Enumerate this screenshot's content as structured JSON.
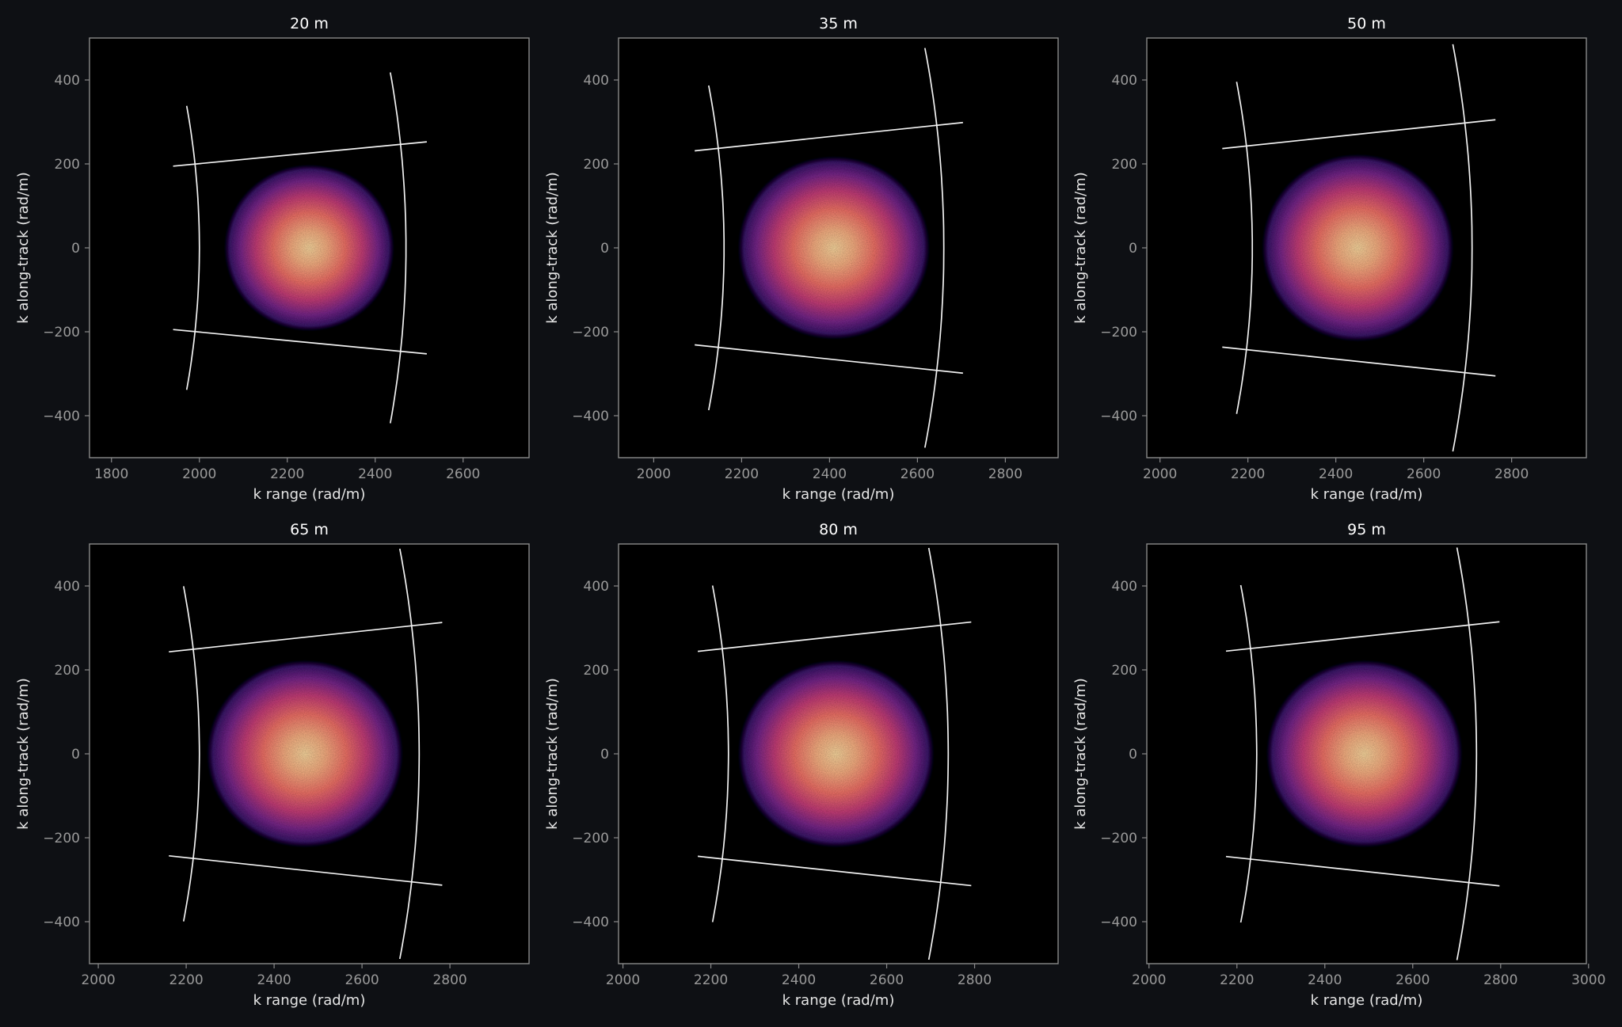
{
  "colors": {
    "background": "#0e1014",
    "plot_bg": "#000000",
    "frame": "#8a8a8a",
    "boundary_line": "#f2f2f2",
    "colormap": "magma"
  },
  "chart_data": [
    {
      "type": "heatmap",
      "title": "20 m",
      "xlabel": "k range (rad/m)",
      "ylabel": "k along-track (rad/m)",
      "xlim": [
        1750,
        2750
      ],
      "ylim": [
        -500,
        500
      ],
      "xticks": [
        1800,
        2000,
        2200,
        2400,
        2600
      ],
      "yticks": [
        400,
        200,
        0,
        -200,
        -400
      ],
      "cloud": {
        "center": [
          2250,
          0
        ],
        "half_width": [
          195,
          200
        ]
      },
      "boundary": {
        "k_min": 2000,
        "k_max": 2470,
        "k_top": 2530,
        "radial_lines_at": [
          -0.1,
          0.1
        ],
        "arc_angle_range": [
          -0.17,
          0.17
        ]
      }
    },
    {
      "type": "heatmap",
      "title": "35 m",
      "xlabel": "k range (rad/m)",
      "ylabel": "k along-track (rad/m)",
      "xlim": [
        1920,
        2920
      ],
      "ylim": [
        -500,
        500
      ],
      "xticks": [
        2000,
        2200,
        2400,
        2600,
        2800
      ],
      "yticks": [
        400,
        200,
        0,
        -200,
        -400
      ],
      "cloud": {
        "center": [
          2410,
          0
        ],
        "half_width": [
          220,
          220
        ]
      },
      "boundary": {
        "k_min": 2160,
        "k_max": 2660,
        "k_top": 2720,
        "radial_lines_at": [
          -0.11,
          0.11
        ],
        "arc_angle_range": [
          -0.18,
          0.18
        ]
      }
    },
    {
      "type": "heatmap",
      "title": "50 m",
      "xlabel": "k range (rad/m)",
      "ylabel": "k along-track (rad/m)",
      "xlim": [
        1970,
        2970
      ],
      "ylim": [
        -500,
        500
      ],
      "xticks": [
        2000,
        2200,
        2400,
        2600,
        2800
      ],
      "yticks": [
        400,
        200,
        0,
        -200,
        -400
      ],
      "cloud": {
        "center": [
          2450,
          0
        ],
        "half_width": [
          220,
          225
        ]
      },
      "boundary": {
        "k_min": 2210,
        "k_max": 2710,
        "k_top": 2780,
        "radial_lines_at": [
          -0.11,
          0.11
        ],
        "arc_angle_range": [
          -0.18,
          0.18
        ]
      }
    },
    {
      "type": "heatmap",
      "title": "65 m",
      "xlabel": "k range (rad/m)",
      "ylabel": "k along-track (rad/m)",
      "xlim": [
        1980,
        2980
      ],
      "ylim": [
        -500,
        500
      ],
      "xticks": [
        2000,
        2200,
        2400,
        2600,
        2800
      ],
      "yticks": [
        400,
        200,
        0,
        -200,
        -400
      ],
      "cloud": {
        "center": [
          2470,
          0
        ],
        "half_width": [
          225,
          225
        ]
      },
      "boundary": {
        "k_min": 2230,
        "k_max": 2730,
        "k_top": 2800,
        "radial_lines_at": [
          -0.112,
          0.112
        ],
        "arc_angle_range": [
          -0.18,
          0.18
        ]
      }
    },
    {
      "type": "heatmap",
      "title": "80 m",
      "xlabel": "k range (rad/m)",
      "ylabel": "k along-track (rad/m)",
      "xlim": [
        1990,
        2990
      ],
      "ylim": [
        -500,
        500
      ],
      "xticks": [
        2000,
        2200,
        2400,
        2600,
        2800
      ],
      "yticks": [
        400,
        200,
        0,
        -200,
        -400
      ],
      "cloud": {
        "center": [
          2485,
          0
        ],
        "half_width": [
          225,
          225
        ]
      },
      "boundary": {
        "k_min": 2240,
        "k_max": 2740,
        "k_top": 2810,
        "radial_lines_at": [
          -0.112,
          0.112
        ],
        "arc_angle_range": [
          -0.18,
          0.18
        ]
      }
    },
    {
      "type": "heatmap",
      "title": "95 m",
      "xlabel": "k range (rad/m)",
      "ylabel": "k along-track (rad/m)",
      "xlim": [
        1995,
        2995
      ],
      "ylim": [
        -500,
        500
      ],
      "xticks": [
        2000,
        2200,
        2400,
        2600,
        2800,
        3000
      ],
      "yticks": [
        400,
        200,
        0,
        -200,
        -400
      ],
      "cloud": {
        "center": [
          2490,
          0
        ],
        "half_width": [
          225,
          225
        ]
      },
      "boundary": {
        "k_min": 2245,
        "k_max": 2745,
        "k_top": 2815,
        "radial_lines_at": [
          -0.112,
          0.112
        ],
        "arc_angle_range": [
          -0.18,
          0.18
        ]
      }
    }
  ]
}
